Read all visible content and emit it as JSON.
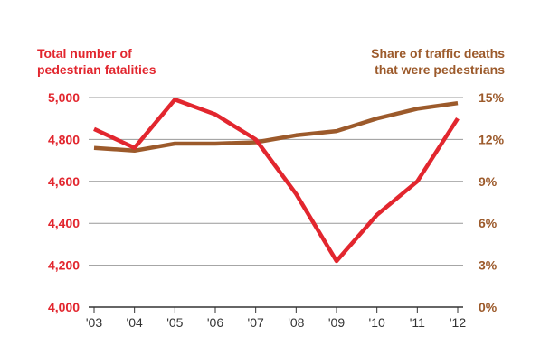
{
  "chart_data": {
    "type": "line",
    "categories": [
      "'03",
      "'04",
      "'05",
      "'06",
      "'07",
      "'08",
      "'09",
      "'10",
      "'11",
      "'12"
    ],
    "series": [
      {
        "name": "Total number of pedestrian fatalities",
        "axis": "left",
        "color": "#e2262e",
        "values": [
          4850,
          4760,
          4990,
          4920,
          4800,
          4540,
          4220,
          4440,
          4600,
          4900
        ]
      },
      {
        "name": "Share of traffic deaths that were pedestrians",
        "axis": "right",
        "color": "#9c5a2b",
        "values": [
          11.4,
          11.2,
          11.7,
          11.7,
          11.8,
          12.3,
          12.6,
          13.5,
          14.2,
          14.6
        ]
      }
    ],
    "left_axis": {
      "title_line1": "Total number of",
      "title_line2": "pedestrian fatalities",
      "ylim": [
        4000,
        5000
      ],
      "ticks": [
        {
          "value": 4000,
          "label": "4,000"
        },
        {
          "value": 4200,
          "label": "4,200"
        },
        {
          "value": 4400,
          "label": "4,400"
        },
        {
          "value": 4600,
          "label": "4,600"
        },
        {
          "value": 4800,
          "label": "4,800"
        },
        {
          "value": 5000,
          "label": "5,000"
        }
      ],
      "color": "#e2262e"
    },
    "right_axis": {
      "title_line1": "Share of traffic deaths",
      "title_line2": "that were pedestrians",
      "ylim": [
        0,
        15
      ],
      "ticks": [
        {
          "value": 0,
          "label": "0%"
        },
        {
          "value": 3,
          "label": "3%"
        },
        {
          "value": 6,
          "label": "6%"
        },
        {
          "value": 9,
          "label": "9%"
        },
        {
          "value": 12,
          "label": "12%"
        },
        {
          "value": 15,
          "label": "15%"
        }
      ],
      "color": "#9c5a2b"
    },
    "grid": true,
    "gridline_color": "#999999",
    "axis_line_color": "#333333",
    "tick_label_color": "#333333"
  }
}
